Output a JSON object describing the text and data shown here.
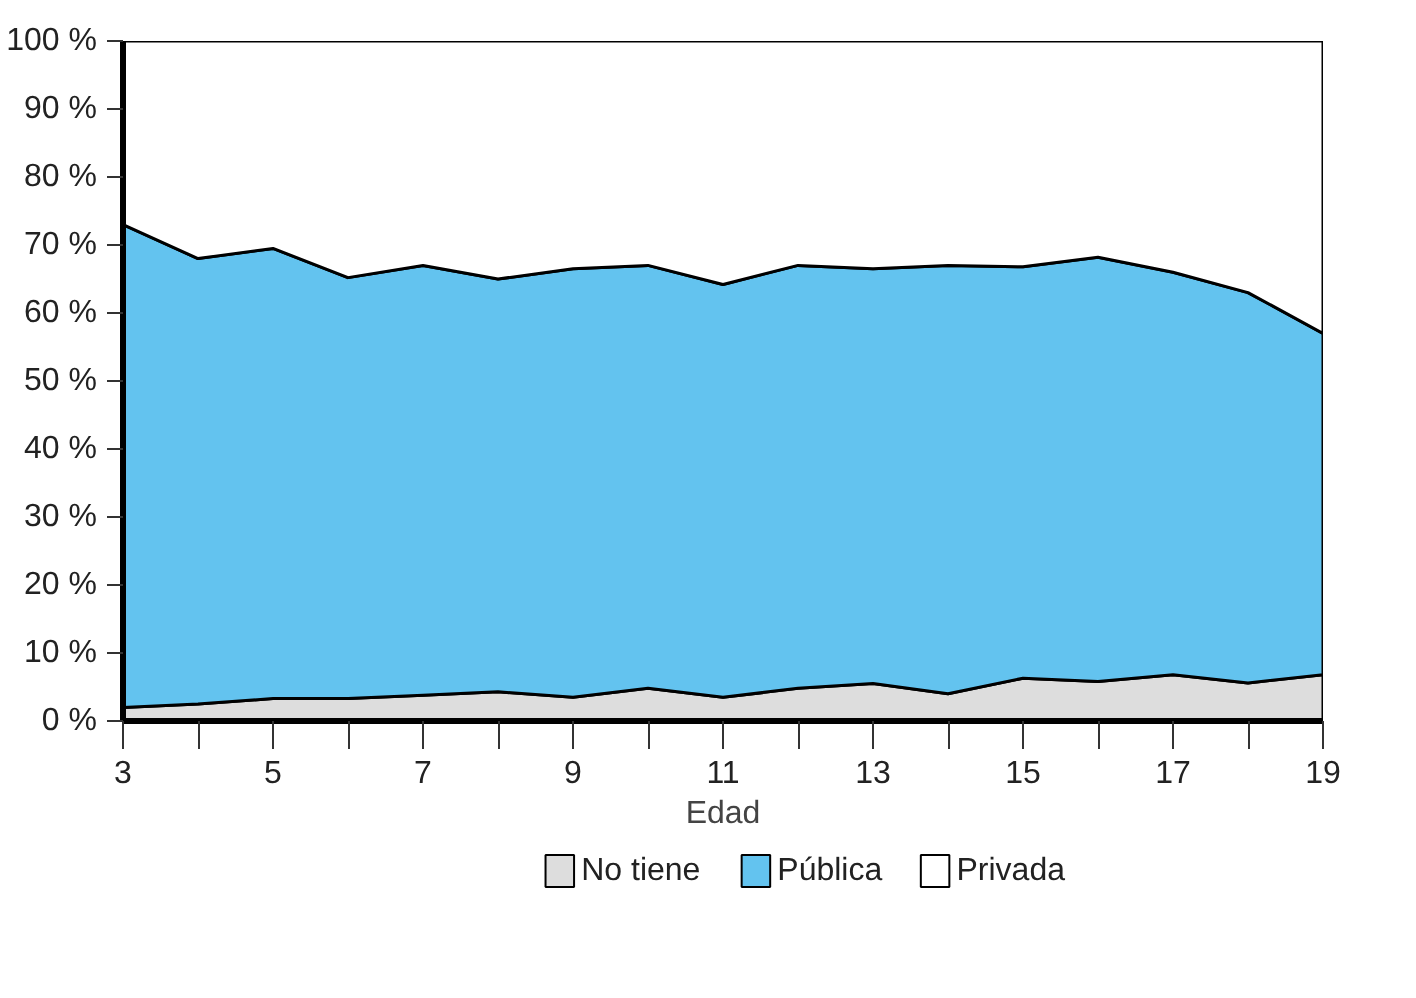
{
  "chart_data": {
    "type": "area",
    "stacked": true,
    "xlabel": "Edad",
    "x": [
      3,
      4,
      5,
      6,
      7,
      8,
      9,
      10,
      11,
      12,
      13,
      14,
      15,
      16,
      17,
      18,
      19
    ],
    "series": [
      {
        "name": "No tiene",
        "color": "#dddddd",
        "values": [
          2,
          2.5,
          3.3,
          3.3,
          3.8,
          4.3,
          3.5,
          4.8,
          3.5,
          4.8,
          5.5,
          4,
          6.3,
          5.8,
          6.8,
          5.6,
          6.8
        ]
      },
      {
        "name": "Pública",
        "color": "#63c3ef",
        "values": [
          71,
          65.5,
          66.2,
          61.9,
          63.2,
          60.7,
          63,
          62.2,
          60.7,
          62.2,
          61,
          63,
          60.5,
          62.4,
          59.2,
          57.4,
          50.2
        ]
      },
      {
        "name": "Privada",
        "color": "#ffffff",
        "values": [
          27,
          32,
          30.5,
          34.8,
          33,
          35,
          33.5,
          33,
          35.8,
          33,
          33.5,
          33,
          33.2,
          31.8,
          34,
          37,
          43
        ]
      }
    ],
    "xlim": [
      3,
      19
    ],
    "ylim": [
      0,
      100
    ],
    "xticks": [
      3,
      {
        "value": 4,
        "label": null
      },
      5,
      {
        "value": 6,
        "label": null
      },
      7,
      {
        "value": 8,
        "label": null
      },
      9,
      {
        "value": 10,
        "label": null
      },
      11,
      {
        "value": 12,
        "label": null
      },
      13,
      {
        "value": 14,
        "label": null
      },
      15,
      {
        "value": 16,
        "label": null
      },
      17,
      {
        "value": 18,
        "label": null
      },
      19
    ],
    "yticks": [
      {
        "value": 0,
        "label": "0 %"
      },
      {
        "value": 10,
        "label": "10 %"
      },
      {
        "value": 20,
        "label": "20 %"
      },
      {
        "value": 30,
        "label": "30 %"
      },
      {
        "value": 40,
        "label": "40 %"
      },
      {
        "value": 50,
        "label": "50 %"
      },
      {
        "value": 60,
        "label": "60 %"
      },
      {
        "value": 70,
        "label": "70 %"
      },
      {
        "value": 80,
        "label": "80 %"
      },
      {
        "value": 90,
        "label": "90 %"
      },
      {
        "value": 100,
        "label": "100 %"
      }
    ],
    "legend": "bottom"
  }
}
